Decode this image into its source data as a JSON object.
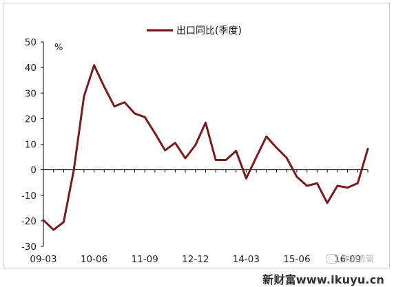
{
  "chart_data": {
    "type": "line",
    "title": "",
    "xlabel": "",
    "ylabel": "%",
    "ylim": [
      -30,
      50
    ],
    "yticks": [
      -30,
      -20,
      -10,
      0,
      10,
      20,
      30,
      40,
      50
    ],
    "xtick_labels": [
      "09-03",
      "10-06",
      "11-09",
      "12-12",
      "14-03",
      "15-06",
      "16-09"
    ],
    "grid": false,
    "legend_position": "top-center",
    "series": [
      {
        "name": "出口同比(季度)",
        "color": "#7b1a1a",
        "x": [
          "09-03",
          "09-06",
          "09-09",
          "09-12",
          "10-03",
          "10-06",
          "10-09",
          "10-12",
          "11-03",
          "11-06",
          "11-09",
          "11-12",
          "12-03",
          "12-06",
          "12-09",
          "12-12",
          "13-03",
          "13-06",
          "13-09",
          "13-12",
          "14-03",
          "14-06",
          "14-09",
          "14-12",
          "15-03",
          "15-06",
          "15-09",
          "15-12",
          "16-03",
          "16-06",
          "16-09",
          "16-12",
          "17-03"
        ],
        "values": [
          -19.7,
          -23.5,
          -20.5,
          0,
          28.7,
          40.9,
          32.5,
          24.8,
          26.4,
          22.0,
          20.6,
          14.3,
          7.6,
          10.5,
          4.5,
          9.7,
          18.4,
          3.8,
          3.8,
          7.4,
          -3.4,
          4.9,
          13.0,
          8.6,
          4.6,
          -2.8,
          -6.3,
          -5.3,
          -13.0,
          -6.3,
          -7.0,
          -5.3,
          8.2
        ]
      }
    ]
  },
  "watermark": {
    "text": "数和资管"
  },
  "site_text": "新财富www.ikuyu.cn"
}
